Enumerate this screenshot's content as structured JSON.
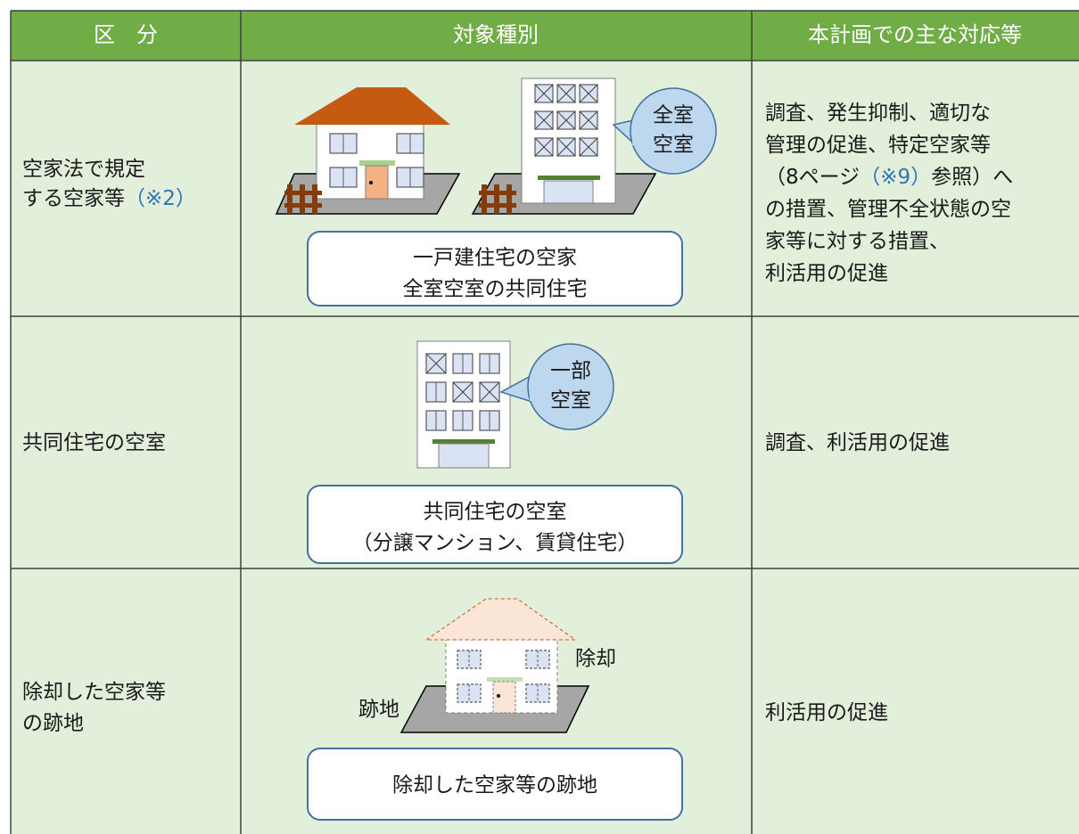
{
  "table": {
    "header": [
      "区　分",
      "対象種別",
      "本計画での主な対応等"
    ],
    "rows": [
      {
        "category": [
          [
            "空家法で規定"
          ],
          [
            "する空家等",
            "（※2）"
          ]
        ],
        "bubble": [
          "全室",
          "空室"
        ],
        "caption": [
          "一戸建住宅の空家",
          "全室空室の共同住宅"
        ],
        "description": [
          [
            "調査、発生抑制、適切な"
          ],
          [
            "管理の促進、特定空家等"
          ],
          [
            "（8ページ",
            "（※9）",
            "参照）へ"
          ],
          [
            "の措置、管理不全状態の空"
          ],
          [
            "家等に対する措置、"
          ],
          [
            "利活用の促進"
          ]
        ]
      },
      {
        "category": [
          [
            "共同住宅の空室"
          ]
        ],
        "bubble": [
          "一部",
          "空室"
        ],
        "caption": [
          "共同住宅の空室",
          "（分譲マンション、賃貸住宅）"
        ],
        "description": [
          [
            "調査、利活用の促進"
          ]
        ]
      },
      {
        "category": [
          [
            "除却した空家等"
          ],
          [
            "の跡地"
          ]
        ],
        "labels": [
          "除却",
          "跡地"
        ],
        "caption": [
          "除却した空家等の跡地"
        ],
        "description": [
          [
            "利活用の促進"
          ]
        ]
      }
    ]
  }
}
